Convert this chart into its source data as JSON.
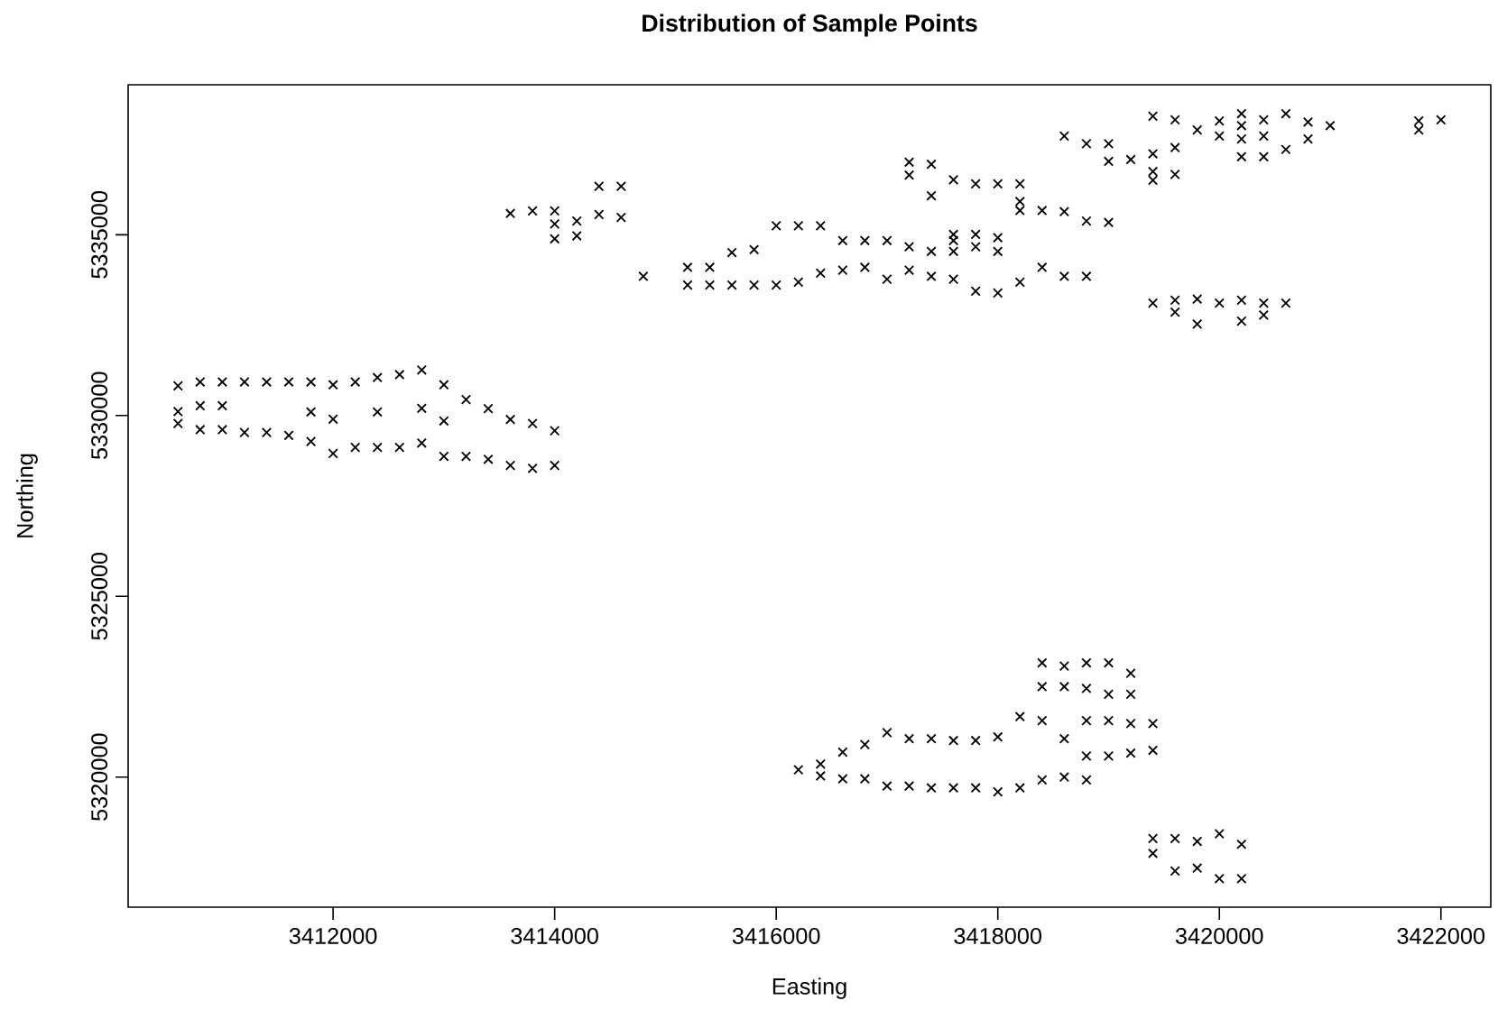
{
  "chart_data": {
    "type": "scatter",
    "title": "Distribution of Sample Points",
    "xlabel": "Easting",
    "ylabel": "Northing",
    "color": "#000000",
    "marker": "cross",
    "grid": false,
    "xlim": [
      3410150,
      3422450
    ],
    "ylim": [
      5316400,
      5339150
    ],
    "xticks": [
      3412000,
      3414000,
      3416000,
      3418000,
      3420000,
      3422000
    ],
    "yticks": [
      5320000,
      5325000,
      5330000,
      5335000
    ],
    "x": [
      3410600,
      3410600,
      3410600,
      3410800,
      3410800,
      3410800,
      3411000,
      3411000,
      3411000,
      3411200,
      3411200,
      3411400,
      3411400,
      3411600,
      3411600,
      3411800,
      3411800,
      3411800,
      3412000,
      3412000,
      3412000,
      3412200,
      3412200,
      3412400,
      3412400,
      3412400,
      3412600,
      3412600,
      3412800,
      3412800,
      3412800,
      3413000,
      3413000,
      3413000,
      3413200,
      3413200,
      3413400,
      3413400,
      3413600,
      3413600,
      3413800,
      3413800,
      3414000,
      3414000,
      3413600,
      3413800,
      3414000,
      3414000,
      3414000,
      3414200,
      3414200,
      3414400,
      3414400,
      3414600,
      3414600,
      3414800,
      3415200,
      3415200,
      3415400,
      3415400,
      3415600,
      3415600,
      3415800,
      3415800,
      3416000,
      3416000,
      3416200,
      3416200,
      3416400,
      3416400,
      3416600,
      3416600,
      3416800,
      3416800,
      3417000,
      3417000,
      3417200,
      3417200,
      3417200,
      3417200,
      3417400,
      3417400,
      3417400,
      3417400,
      3417600,
      3417600,
      3417600,
      3417600,
      3417600,
      3417800,
      3417800,
      3417800,
      3417800,
      3418000,
      3418000,
      3418000,
      3418000,
      3418200,
      3418200,
      3418200,
      3418200,
      3418400,
      3418400,
      3418600,
      3418600,
      3418600,
      3418800,
      3418800,
      3418800,
      3419000,
      3419000,
      3419000,
      3419200,
      3419400,
      3419400,
      3419400,
      3419400,
      3419400,
      3419600,
      3419600,
      3419600,
      3419600,
      3419600,
      3419800,
      3419800,
      3419800,
      3420000,
      3420000,
      3420000,
      3420200,
      3420200,
      3420200,
      3420200,
      3420200,
      3420200,
      3420400,
      3420400,
      3420400,
      3420400,
      3420400,
      3420600,
      3420600,
      3420600,
      3420800,
      3420800,
      3421000,
      3421800,
      3421800,
      3422000,
      3416200,
      3416400,
      3416400,
      3416600,
      3416600,
      3416800,
      3416800,
      3417000,
      3417000,
      3417200,
      3417200,
      3417400,
      3417400,
      3417600,
      3417600,
      3417800,
      3417800,
      3418000,
      3418000,
      3418200,
      3418200,
      3418400,
      3418400,
      3418400,
      3418400,
      3418600,
      3418600,
      3418600,
      3418600,
      3418800,
      3418800,
      3418800,
      3418800,
      3418800,
      3419000,
      3419000,
      3419000,
      3419000,
      3419200,
      3419200,
      3419200,
      3419200,
      3419400,
      3419400,
      3419400,
      3419400,
      3419600,
      3419600,
      3419800,
      3419800,
      3420000,
      3420000,
      3420200,
      3420200
    ],
    "values": [
      5330820,
      5330110,
      5329780,
      5330930,
      5330270,
      5329610,
      5330930,
      5330270,
      5329610,
      5330930,
      5329530,
      5330930,
      5329530,
      5330930,
      5329450,
      5330930,
      5330100,
      5329280,
      5330850,
      5329900,
      5328950,
      5330930,
      5329120,
      5331050,
      5330100,
      5329120,
      5331130,
      5329120,
      5331260,
      5330200,
      5329240,
      5330850,
      5329850,
      5328870,
      5330440,
      5328870,
      5330190,
      5328790,
      5329890,
      5328620,
      5329780,
      5328540,
      5329580,
      5328620,
      5335590,
      5335660,
      5335660,
      5335300,
      5334890,
      5335380,
      5334970,
      5336340,
      5335560,
      5336340,
      5335480,
      5333850,
      5334100,
      5333610,
      5334100,
      5333610,
      5334510,
      5333610,
      5334590,
      5333610,
      5335250,
      5333610,
      5335250,
      5333690,
      5335250,
      5333940,
      5334840,
      5334020,
      5334840,
      5334100,
      5334840,
      5333770,
      5337010,
      5336650,
      5334670,
      5334020,
      5336950,
      5336080,
      5334540,
      5333850,
      5336520,
      5335010,
      5334840,
      5334540,
      5333770,
      5336410,
      5335010,
      5334670,
      5333440,
      5336410,
      5334920,
      5334540,
      5333390,
      5336410,
      5335920,
      5335670,
      5333690,
      5335670,
      5334100,
      5337730,
      5335640,
      5333850,
      5337520,
      5335380,
      5333850,
      5337520,
      5337030,
      5335340,
      5337080,
      5338280,
      5337240,
      5336750,
      5336510,
      5333110,
      5338180,
      5337410,
      5336670,
      5333190,
      5332860,
      5337900,
      5333220,
      5332530,
      5338150,
      5337730,
      5333110,
      5338350,
      5338020,
      5337650,
      5337160,
      5333190,
      5332610,
      5338180,
      5337730,
      5337160,
      5333110,
      5332780,
      5338350,
      5337360,
      5333110,
      5338120,
      5337650,
      5338020,
      5338150,
      5337900,
      5338180,
      5320200,
      5320360,
      5320030,
      5320690,
      5319950,
      5320900,
      5319950,
      5321230,
      5319750,
      5321060,
      5319750,
      5321060,
      5319700,
      5321010,
      5319700,
      5321010,
      5319700,
      5321110,
      5319590,
      5321670,
      5319700,
      5323160,
      5322500,
      5321560,
      5319920,
      5323070,
      5322500,
      5321060,
      5320000,
      5323160,
      5322450,
      5321560,
      5320580,
      5319920,
      5323160,
      5322290,
      5321560,
      5320580,
      5322870,
      5322290,
      5321480,
      5320660,
      5321480,
      5320740,
      5318300,
      5317890,
      5318300,
      5317400,
      5318220,
      5317480,
      5318430,
      5317190,
      5318140,
      5317190
    ]
  }
}
